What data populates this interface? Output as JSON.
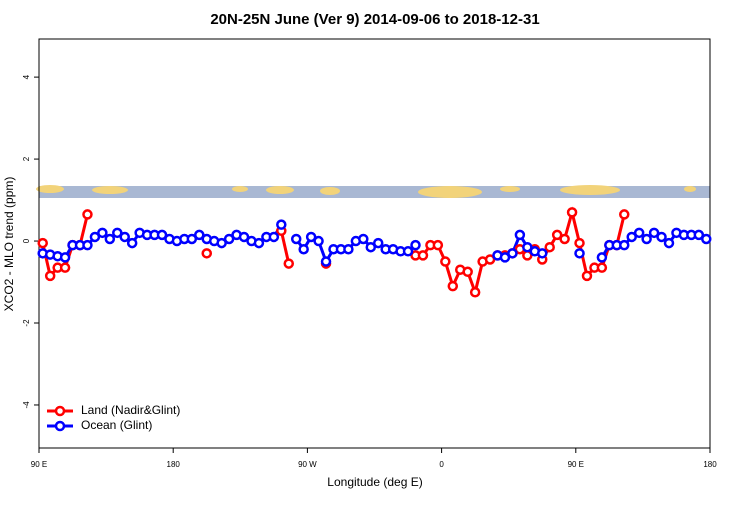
{
  "chart_data": {
    "type": "line",
    "title": "20N-25N June (Ver 9)   2014-09-06 to 2018-12-31",
    "x_label": "Longitude (deg E)",
    "y_label": "XCO2 - MLO trend (ppm)",
    "x": [
      92.5,
      97.5,
      102.5,
      107.5,
      112.5,
      117.5,
      122.5,
      127.5,
      132.5,
      137.5,
      142.5,
      147.5,
      152.5,
      157.5,
      162.5,
      167.5,
      172.5,
      177.5,
      182.5,
      187.5,
      192.5,
      197.5,
      202.5,
      207.5,
      212.5,
      217.5,
      222.5,
      227.5,
      232.5,
      237.5,
      242.5,
      247.5,
      252.5,
      257.5,
      262.5,
      267.5,
      272.5,
      277.5,
      282.5,
      287.5,
      292.5,
      297.5,
      302.5,
      307.5,
      312.5,
      317.5,
      322.5,
      327.5,
      332.5,
      337.5,
      342.5,
      347.5,
      352.5,
      357.5,
      362.5,
      367.5,
      372.5,
      377.5,
      382.5,
      387.5,
      392.5,
      397.5,
      402.5,
      407.5,
      412.5,
      417.5,
      422.5,
      427.5,
      432.5,
      437.5,
      442.5,
      447.5,
      452.5,
      457.5,
      462.5,
      467.5,
      472.5,
      477.5,
      482.5,
      487.5,
      492.5,
      497.5,
      502.5,
      507.5,
      512.5,
      517.5,
      522.5,
      527.5,
      532.5,
      537.5
    ],
    "series": [
      {
        "name": "Land (Nadir&Glint)",
        "color": "#ff0000",
        "values": [
          -0.05,
          -0.85,
          -0.65,
          -0.65,
          -0.1,
          -0.1,
          0.65,
          null,
          null,
          null,
          null,
          null,
          null,
          null,
          null,
          null,
          null,
          null,
          null,
          null,
          null,
          null,
          -0.3,
          null,
          null,
          null,
          null,
          null,
          null,
          null,
          null,
          null,
          0.25,
          -0.55,
          null,
          null,
          null,
          null,
          -0.55,
          null,
          null,
          null,
          null,
          null,
          null,
          null,
          null,
          null,
          null,
          null,
          -0.35,
          -0.35,
          -0.1,
          -0.1,
          -0.5,
          -1.1,
          -0.7,
          -0.75,
          -1.25,
          -0.5,
          -0.45,
          -0.35,
          -0.35,
          -0.3,
          -0.2,
          -0.35,
          -0.2,
          -0.45,
          -0.15,
          0.15,
          0.05,
          0.7,
          -0.05,
          -0.85,
          -0.65,
          -0.65,
          -0.1,
          -0.1,
          0.65,
          null,
          null,
          null,
          null,
          null,
          null,
          null,
          null,
          null,
          null,
          null
        ]
      },
      {
        "name": "Ocean (Glint)",
        "color": "#0000ff",
        "values": [
          -0.3,
          -0.33,
          -0.37,
          -0.4,
          -0.1,
          -0.1,
          -0.1,
          0.1,
          0.2,
          0.05,
          0.2,
          0.1,
          -0.05,
          0.2,
          0.15,
          0.15,
          0.15,
          0.05,
          0,
          0.05,
          0.05,
          0.15,
          0.05,
          0,
          -0.05,
          0.05,
          0.15,
          0.1,
          0,
          -0.05,
          0.1,
          0.1,
          0.4,
          null,
          0.05,
          -0.2,
          0.1,
          0,
          -0.5,
          -0.2,
          -0.2,
          -0.2,
          0,
          0.05,
          -0.15,
          -0.05,
          -0.2,
          -0.2,
          -0.25,
          -0.25,
          -0.1,
          null,
          null,
          null,
          null,
          null,
          null,
          null,
          null,
          null,
          null,
          -0.35,
          -0.4,
          -0.3,
          0.15,
          -0.15,
          -0.25,
          -0.3,
          null,
          null,
          null,
          null,
          -0.3,
          null,
          null,
          -0.4,
          -0.1,
          -0.1,
          -0.1,
          0.1,
          0.2,
          0.05,
          0.2,
          0.1,
          -0.05,
          0.2,
          0.15,
          0.15,
          0.15,
          0.05
        ]
      }
    ],
    "xlim": [
      90,
      540
    ],
    "xticks": [
      {
        "value": 90,
        "label": "90 E"
      },
      {
        "value": 180,
        "label": "180"
      },
      {
        "value": 270,
        "label": "90 W"
      },
      {
        "value": 360,
        "label": "0"
      },
      {
        "value": 450,
        "label": "90 E"
      },
      {
        "value": 540,
        "label": "180"
      }
    ],
    "ylim": [
      -5.05,
      4.93
    ],
    "yticks": [
      -4,
      -2,
      0,
      2,
      4
    ],
    "legend": "bottomleft"
  }
}
